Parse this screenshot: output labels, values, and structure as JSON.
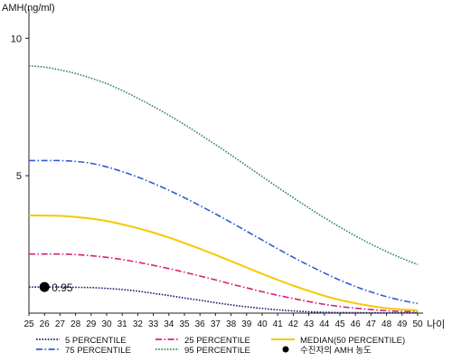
{
  "chart_data": {
    "type": "line",
    "ylabel": "AMH(ng/ml)",
    "xlabel": "나이",
    "x": [
      25,
      26,
      27,
      28,
      29,
      30,
      31,
      32,
      33,
      34,
      35,
      36,
      37,
      38,
      39,
      40,
      41,
      42,
      43,
      44,
      45,
      46,
      47,
      48,
      49,
      50
    ],
    "x_ticks": [
      "25",
      "26",
      "27",
      "28",
      "29",
      "30",
      "31",
      "32",
      "33",
      "34",
      "35",
      "36",
      "37",
      "38",
      "39",
      "40",
      "41",
      "42",
      "43",
      "44",
      "45",
      "46",
      "47",
      "48",
      "49",
      "50"
    ],
    "xlim": [
      25,
      50
    ],
    "ylim": [
      0,
      10.8
    ],
    "y_ticks": [
      5,
      10
    ],
    "y_tick_labels": [
      "5",
      "10"
    ],
    "grid": false,
    "legend_position": "bottom",
    "series": [
      {
        "name": "5 PERCENTILE",
        "color": "#1a1a6e",
        "dash": "dot",
        "values": [
          0.95,
          0.95,
          0.95,
          0.94,
          0.93,
          0.9,
          0.86,
          0.8,
          0.72,
          0.64,
          0.55,
          0.47,
          0.38,
          0.3,
          0.23,
          0.17,
          0.12,
          0.08,
          0.05,
          0.03,
          0.02,
          0.02,
          0.01,
          0.01,
          0.01,
          0.01
        ]
      },
      {
        "name": "25 PERCENTILE",
        "color": "#d6217a",
        "dash": "dashdot",
        "values": [
          2.15,
          2.15,
          2.15,
          2.13,
          2.09,
          2.03,
          1.95,
          1.85,
          1.74,
          1.62,
          1.49,
          1.35,
          1.21,
          1.06,
          0.92,
          0.78,
          0.65,
          0.53,
          0.42,
          0.32,
          0.24,
          0.18,
          0.13,
          0.09,
          0.06,
          0.05
        ]
      },
      {
        "name": "MEDIAN(50 PERCENTILE)",
        "color": "#f5c800",
        "dash": "solid",
        "values": [
          3.55,
          3.55,
          3.54,
          3.5,
          3.44,
          3.35,
          3.23,
          3.09,
          2.93,
          2.75,
          2.55,
          2.34,
          2.12,
          1.89,
          1.66,
          1.43,
          1.21,
          1.0,
          0.81,
          0.63,
          0.48,
          0.36,
          0.26,
          0.18,
          0.13,
          0.1
        ]
      },
      {
        "name": "75 PERCENTILE",
        "color": "#2f5bd6",
        "dash": "dashdot",
        "values": [
          5.55,
          5.55,
          5.55,
          5.52,
          5.45,
          5.32,
          5.15,
          4.95,
          4.72,
          4.47,
          4.2,
          3.91,
          3.61,
          3.3,
          2.98,
          2.66,
          2.34,
          2.03,
          1.74,
          1.46,
          1.2,
          0.97,
          0.77,
          0.6,
          0.46,
          0.35
        ]
      },
      {
        "name": "95 PERCENTILE",
        "color": "#2e8b57",
        "dash": "dot",
        "values": [
          9.0,
          8.95,
          8.85,
          8.72,
          8.55,
          8.35,
          8.1,
          7.82,
          7.52,
          7.2,
          6.86,
          6.5,
          6.13,
          5.75,
          5.36,
          4.97,
          4.58,
          4.2,
          3.83,
          3.47,
          3.13,
          2.81,
          2.51,
          2.24,
          1.99,
          1.77
        ]
      }
    ],
    "highlight": {
      "name": "수진자의 AMH 농도",
      "x": 26,
      "y": 0.95,
      "label": "0.95",
      "color": "#000000"
    }
  }
}
